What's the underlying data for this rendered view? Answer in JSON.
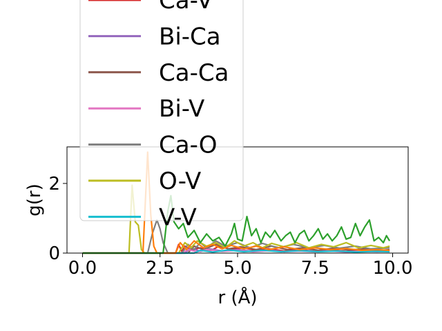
{
  "chart_data": {
    "type": "line",
    "title": "",
    "xlabel": "r ($\\AA$)",
    "ylabel": "g(r)",
    "xlabel_display": "r (Å)",
    "xlim": [
      -0.5,
      10.5
    ],
    "ylim": [
      0,
      3.05
    ],
    "x_ticks": [
      0.0,
      2.5,
      5.0,
      7.5,
      10.0
    ],
    "x_tick_labels": [
      "0.0",
      "2.5",
      "5.0",
      "7.5",
      "10.0"
    ],
    "y_ticks": [
      0,
      2
    ],
    "y_tick_labels": [
      "0",
      "2"
    ],
    "grid": false,
    "legend_placement": "upper-left (overflowing above axes)",
    "series": [
      {
        "name": "Ca-V",
        "color": "#d62728",
        "points": [
          [
            0,
            0
          ],
          [
            3.0,
            0
          ],
          [
            3.1,
            0.25
          ],
          [
            3.2,
            0.05
          ],
          [
            3.3,
            0.2
          ],
          [
            3.5,
            0.1
          ],
          [
            3.8,
            0.15
          ],
          [
            4.1,
            0.05
          ],
          [
            4.4,
            0.2
          ],
          [
            4.8,
            0.1
          ],
          [
            5.2,
            0.15
          ],
          [
            5.6,
            0.08
          ],
          [
            6.0,
            0.12
          ],
          [
            6.5,
            0.06
          ],
          [
            7.0,
            0.1
          ],
          [
            7.5,
            0.05
          ],
          [
            8.0,
            0.09
          ],
          [
            8.5,
            0.05
          ],
          [
            9.0,
            0.08
          ],
          [
            9.5,
            0.06
          ],
          [
            9.9,
            0.07
          ]
        ]
      },
      {
        "name": "Bi-Ca",
        "color": "#9467bd",
        "points": [
          [
            0,
            0
          ],
          [
            3.3,
            0
          ],
          [
            3.5,
            0.15
          ],
          [
            3.8,
            0.05
          ],
          [
            4.1,
            0.12
          ],
          [
            4.5,
            0.06
          ],
          [
            5.0,
            0.1
          ],
          [
            5.5,
            0.05
          ],
          [
            6.0,
            0.09
          ],
          [
            6.5,
            0.04
          ],
          [
            7.0,
            0.08
          ],
          [
            7.5,
            0.05
          ],
          [
            8.0,
            0.07
          ],
          [
            8.5,
            0.04
          ],
          [
            9.0,
            0.06
          ],
          [
            9.5,
            0.05
          ],
          [
            9.9,
            0.05
          ]
        ]
      },
      {
        "name": "Ca-Ca",
        "color": "#8c564b",
        "points": [
          [
            0,
            0
          ],
          [
            3.4,
            0
          ],
          [
            3.6,
            0.2
          ],
          [
            3.9,
            0.1
          ],
          [
            4.3,
            0.25
          ],
          [
            4.7,
            0.12
          ],
          [
            5.1,
            0.18
          ],
          [
            5.6,
            0.1
          ],
          [
            6.1,
            0.2
          ],
          [
            6.6,
            0.1
          ],
          [
            7.1,
            0.15
          ],
          [
            7.6,
            0.08
          ],
          [
            8.1,
            0.14
          ],
          [
            8.6,
            0.09
          ],
          [
            9.1,
            0.12
          ],
          [
            9.6,
            0.08
          ],
          [
            9.9,
            0.1
          ]
        ]
      },
      {
        "name": "Bi-V",
        "color": "#e377c2",
        "points": [
          [
            0,
            0
          ],
          [
            3.2,
            0
          ],
          [
            3.4,
            0.1
          ],
          [
            3.7,
            0.04
          ],
          [
            4.0,
            0.1
          ],
          [
            4.5,
            0.05
          ],
          [
            5.0,
            0.08
          ],
          [
            5.5,
            0.04
          ],
          [
            6.0,
            0.07
          ],
          [
            6.5,
            0.04
          ],
          [
            7.0,
            0.06
          ],
          [
            7.5,
            0.04
          ],
          [
            8.0,
            0.06
          ],
          [
            8.5,
            0.03
          ],
          [
            9.0,
            0.05
          ],
          [
            9.5,
            0.04
          ],
          [
            9.9,
            0.05
          ]
        ]
      },
      {
        "name": "Ca-O",
        "color": "#7f7f7f",
        "points": [
          [
            0,
            0
          ],
          [
            2.1,
            0
          ],
          [
            2.25,
            0.55
          ],
          [
            2.4,
            0.95
          ],
          [
            2.5,
            0.7
          ],
          [
            2.6,
            0.3
          ],
          [
            2.75,
            0
          ],
          [
            3.2,
            0
          ],
          [
            3.4,
            0.25
          ],
          [
            3.6,
            0.1
          ],
          [
            3.8,
            0.3
          ],
          [
            4.0,
            0.15
          ],
          [
            4.3,
            0.35
          ],
          [
            4.6,
            0.2
          ],
          [
            5.0,
            0.3
          ],
          [
            5.4,
            0.15
          ],
          [
            5.8,
            0.28
          ],
          [
            6.3,
            0.15
          ],
          [
            6.8,
            0.25
          ],
          [
            7.3,
            0.15
          ],
          [
            7.8,
            0.22
          ],
          [
            8.3,
            0.14
          ],
          [
            8.8,
            0.2
          ],
          [
            9.3,
            0.12
          ],
          [
            9.9,
            0.15
          ]
        ]
      },
      {
        "name": "O-V",
        "color": "#bcbd22",
        "points": [
          [
            0,
            0
          ],
          [
            1.5,
            0
          ],
          [
            1.6,
            1.95
          ],
          [
            1.7,
            0.9
          ],
          [
            1.8,
            0.8
          ],
          [
            1.9,
            0.1
          ],
          [
            2.0,
            0
          ],
          [
            3.1,
            0
          ],
          [
            3.3,
            0.3
          ],
          [
            3.5,
            0.15
          ],
          [
            3.7,
            0.35
          ],
          [
            4.0,
            0.2
          ],
          [
            4.3,
            0.3
          ],
          [
            4.6,
            0.15
          ],
          [
            4.9,
            0.35
          ],
          [
            5.2,
            0.2
          ],
          [
            5.5,
            0.3
          ],
          [
            5.8,
            0.15
          ],
          [
            6.1,
            0.28
          ],
          [
            6.5,
            0.18
          ],
          [
            6.9,
            0.3
          ],
          [
            7.3,
            0.15
          ],
          [
            7.7,
            0.25
          ],
          [
            8.1,
            0.18
          ],
          [
            8.5,
            0.3
          ],
          [
            8.9,
            0.15
          ],
          [
            9.3,
            0.22
          ],
          [
            9.7,
            0.15
          ],
          [
            9.9,
            0.2
          ]
        ]
      },
      {
        "name": "V-V",
        "color": "#17becf",
        "points": [
          [
            0,
            0
          ],
          [
            3.6,
            0
          ],
          [
            3.8,
            0.08
          ],
          [
            4.2,
            0.03
          ],
          [
            4.7,
            0.09
          ],
          [
            5.2,
            0.04
          ],
          [
            5.8,
            0.08
          ],
          [
            6.4,
            0.04
          ],
          [
            7.0,
            0.07
          ],
          [
            7.6,
            0.04
          ],
          [
            8.2,
            0.06
          ],
          [
            8.8,
            0.03
          ],
          [
            9.4,
            0.05
          ],
          [
            9.9,
            0.04
          ]
        ]
      },
      {
        "name": "",
        "color": "#ff7f0e",
        "points": [
          [
            0,
            0
          ],
          [
            1.95,
            0
          ],
          [
            2.1,
            2.9
          ],
          [
            2.2,
            1.1
          ],
          [
            2.3,
            0.2
          ],
          [
            2.4,
            0
          ],
          [
            3.0,
            0
          ],
          [
            3.15,
            0.3
          ],
          [
            3.35,
            0.1
          ],
          [
            3.6,
            0.35
          ],
          [
            3.9,
            0.15
          ],
          [
            4.2,
            0.25
          ],
          [
            4.5,
            0.12
          ],
          [
            4.8,
            0.22
          ],
          [
            5.2,
            0.12
          ],
          [
            5.6,
            0.2
          ],
          [
            6.0,
            0.1
          ],
          [
            6.5,
            0.18
          ],
          [
            7.0,
            0.1
          ],
          [
            7.5,
            0.15
          ],
          [
            8.0,
            0.1
          ],
          [
            8.5,
            0.13
          ],
          [
            9.0,
            0.08
          ],
          [
            9.5,
            0.1
          ],
          [
            9.9,
            0.08
          ]
        ]
      },
      {
        "name": "",
        "color": "#2ca02c",
        "points": [
          [
            0,
            0
          ],
          [
            2.6,
            0
          ],
          [
            2.75,
            1.2
          ],
          [
            2.85,
            1.65
          ],
          [
            2.95,
            0.9
          ],
          [
            3.1,
            0.7
          ],
          [
            3.25,
            0.85
          ],
          [
            3.4,
            0.45
          ],
          [
            3.6,
            0.65
          ],
          [
            3.8,
            0.3
          ],
          [
            4.0,
            0.55
          ],
          [
            4.2,
            0.35
          ],
          [
            4.4,
            0.45
          ],
          [
            4.6,
            0.2
          ],
          [
            4.8,
            0.55
          ],
          [
            4.9,
            0.85
          ],
          [
            5.0,
            0.4
          ],
          [
            5.15,
            0.35
          ],
          [
            5.3,
            1.05
          ],
          [
            5.45,
            0.5
          ],
          [
            5.6,
            0.7
          ],
          [
            5.75,
            0.3
          ],
          [
            5.9,
            0.6
          ],
          [
            6.05,
            0.45
          ],
          [
            6.2,
            0.65
          ],
          [
            6.4,
            0.35
          ],
          [
            6.55,
            0.5
          ],
          [
            6.7,
            0.6
          ],
          [
            6.85,
            0.3
          ],
          [
            7.0,
            0.55
          ],
          [
            7.15,
            0.65
          ],
          [
            7.3,
            0.35
          ],
          [
            7.45,
            0.5
          ],
          [
            7.6,
            0.7
          ],
          [
            7.75,
            0.4
          ],
          [
            7.9,
            0.55
          ],
          [
            8.05,
            0.35
          ],
          [
            8.2,
            0.5
          ],
          [
            8.35,
            0.75
          ],
          [
            8.5,
            0.4
          ],
          [
            8.65,
            0.45
          ],
          [
            8.8,
            0.85
          ],
          [
            8.95,
            0.5
          ],
          [
            9.1,
            0.75
          ],
          [
            9.25,
            0.95
          ],
          [
            9.4,
            0.35
          ],
          [
            9.55,
            0.45
          ],
          [
            9.7,
            0.3
          ],
          [
            9.8,
            0.5
          ],
          [
            9.9,
            0.35
          ]
        ]
      }
    ]
  }
}
